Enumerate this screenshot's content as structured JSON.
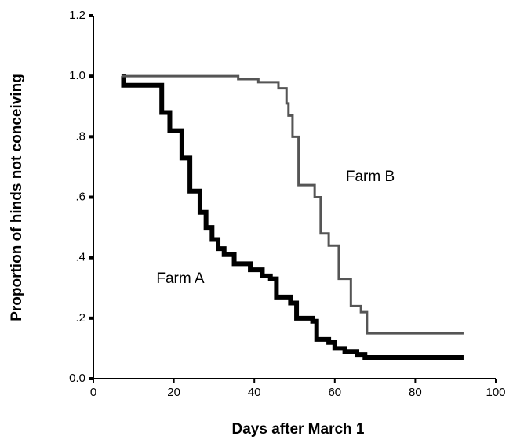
{
  "chart_data": {
    "type": "line",
    "step": "post",
    "xlabel": "Days after March 1",
    "ylabel": "Proportion of hinds not conceiving",
    "xlim": [
      0,
      100
    ],
    "xticks": [
      0,
      20,
      40,
      60,
      80,
      100
    ],
    "ylim": [
      0,
      1.2
    ],
    "yticks": [
      {
        "value": 0,
        "label": "0.0"
      },
      {
        "value": 0.2,
        "label": ".2"
      },
      {
        "value": 0.4,
        "label": ".4"
      },
      {
        "value": 0.6,
        "label": ".6"
      },
      {
        "value": 0.8,
        "label": ".8"
      },
      {
        "value": 1,
        "label": "1.0"
      },
      1.2
    ],
    "grid": false,
    "series": [
      {
        "name": "Farm A",
        "color": "#000000",
        "x": [
          7,
          7.5,
          17,
          19,
          22,
          24,
          26.5,
          28,
          29.5,
          31,
          32.5,
          35,
          39,
          42,
          44,
          45.5,
          49,
          50.5,
          54.5,
          55.5,
          58.5,
          60,
          62.5,
          65.5,
          67.5,
          92
        ],
        "values": [
          1.0,
          0.97,
          0.88,
          0.82,
          0.73,
          0.62,
          0.55,
          0.5,
          0.46,
          0.43,
          0.41,
          0.38,
          0.36,
          0.34,
          0.33,
          0.27,
          0.25,
          0.2,
          0.19,
          0.13,
          0.12,
          0.1,
          0.09,
          0.08,
          0.07,
          0.07
        ]
      },
      {
        "name": "Farm B",
        "color": "#555555",
        "x": [
          7,
          36,
          41,
          46,
          48,
          48.5,
          49.5,
          51,
          55,
          56.5,
          58.5,
          61,
          64,
          66.5,
          68,
          92
        ],
        "values": [
          1.0,
          0.99,
          0.98,
          0.96,
          0.91,
          0.87,
          0.8,
          0.64,
          0.6,
          0.48,
          0.44,
          0.33,
          0.24,
          0.22,
          0.15,
          0.15
        ]
      }
    ]
  }
}
